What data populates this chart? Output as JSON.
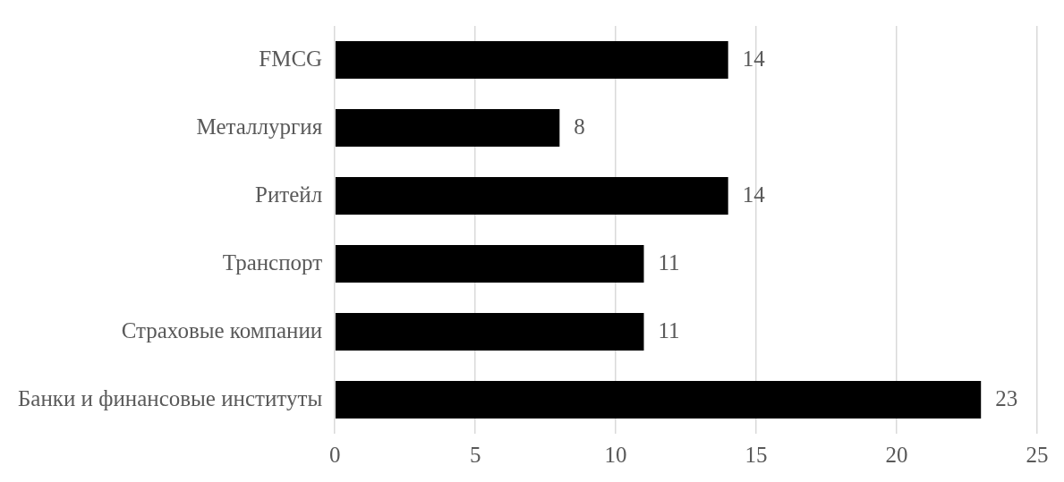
{
  "chart_data": {
    "type": "bar",
    "orientation": "horizontal",
    "categories": [
      "FMCG",
      "Металлургия",
      "Ритейл",
      "Транспорт",
      "Страховые компании",
      "Банки и финансовые институты"
    ],
    "values": [
      14,
      8,
      14,
      11,
      11,
      23
    ],
    "color": "#000000",
    "xlim": [
      0,
      25
    ],
    "xticks": [
      0,
      5,
      10,
      15,
      20,
      25
    ],
    "grid": "x",
    "legend": false,
    "data_labels": true
  }
}
